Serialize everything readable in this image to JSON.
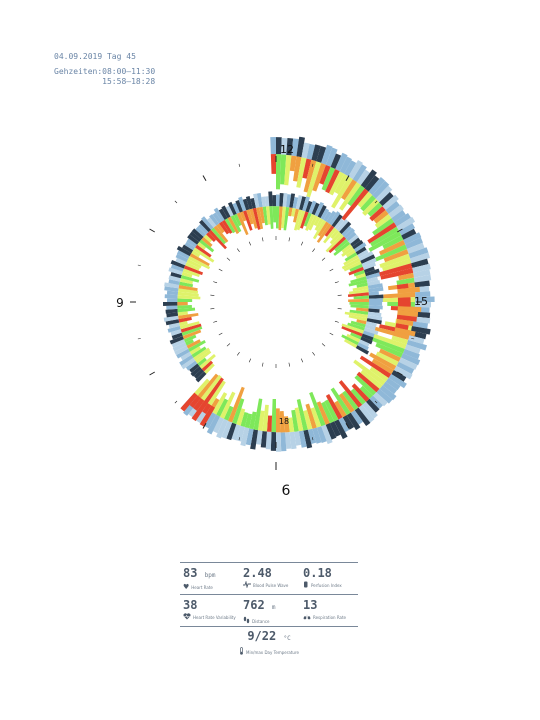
{
  "header": {
    "date_line": "04.09.2019 Tag 45",
    "times_label": "Gehzeiten:",
    "times": [
      "08:00–11:30",
      "15:58–18:28"
    ]
  },
  "clock_labels": {
    "outer": {
      "top": "12",
      "right": "15",
      "left": "9",
      "bottom": "6"
    },
    "inner": {
      "bottom": "18"
    }
  },
  "colors": {
    "dark": "#2c3e50",
    "blue": "#8fb8d8",
    "pale_blue": "#b7d2e6",
    "green": "#7ee85a",
    "yellow": "#dff26a",
    "orange": "#f0a040",
    "red": "#e5452f"
  },
  "stats": {
    "heart_rate": {
      "value": "83",
      "unit": "bpm",
      "label": "Heart Rate",
      "icon": "heart-icon"
    },
    "blood_pulse_wave": {
      "value": "2.48",
      "unit": "",
      "label": "Blood Pulse Wave",
      "icon": "pulse-wave-icon"
    },
    "perfusion_index": {
      "value": "0.18",
      "unit": "",
      "label": "Perfusion Index",
      "icon": "perfusion-icon"
    },
    "heart_rate_variability": {
      "value": "38",
      "unit": "",
      "label": "Heart Rate Variability",
      "icon": "heart-variability-icon"
    },
    "distance": {
      "value": "762",
      "unit": "m",
      "label": "Distance",
      "icon": "footsteps-icon"
    },
    "respiration_rate": {
      "value": "13",
      "unit": "",
      "label": "Respiration Rate",
      "icon": "lungs-icon"
    },
    "temperature": {
      "value": "9/22",
      "unit": "°C",
      "label": "Min/max Day Temperature",
      "icon": "thermometer-icon"
    }
  }
}
